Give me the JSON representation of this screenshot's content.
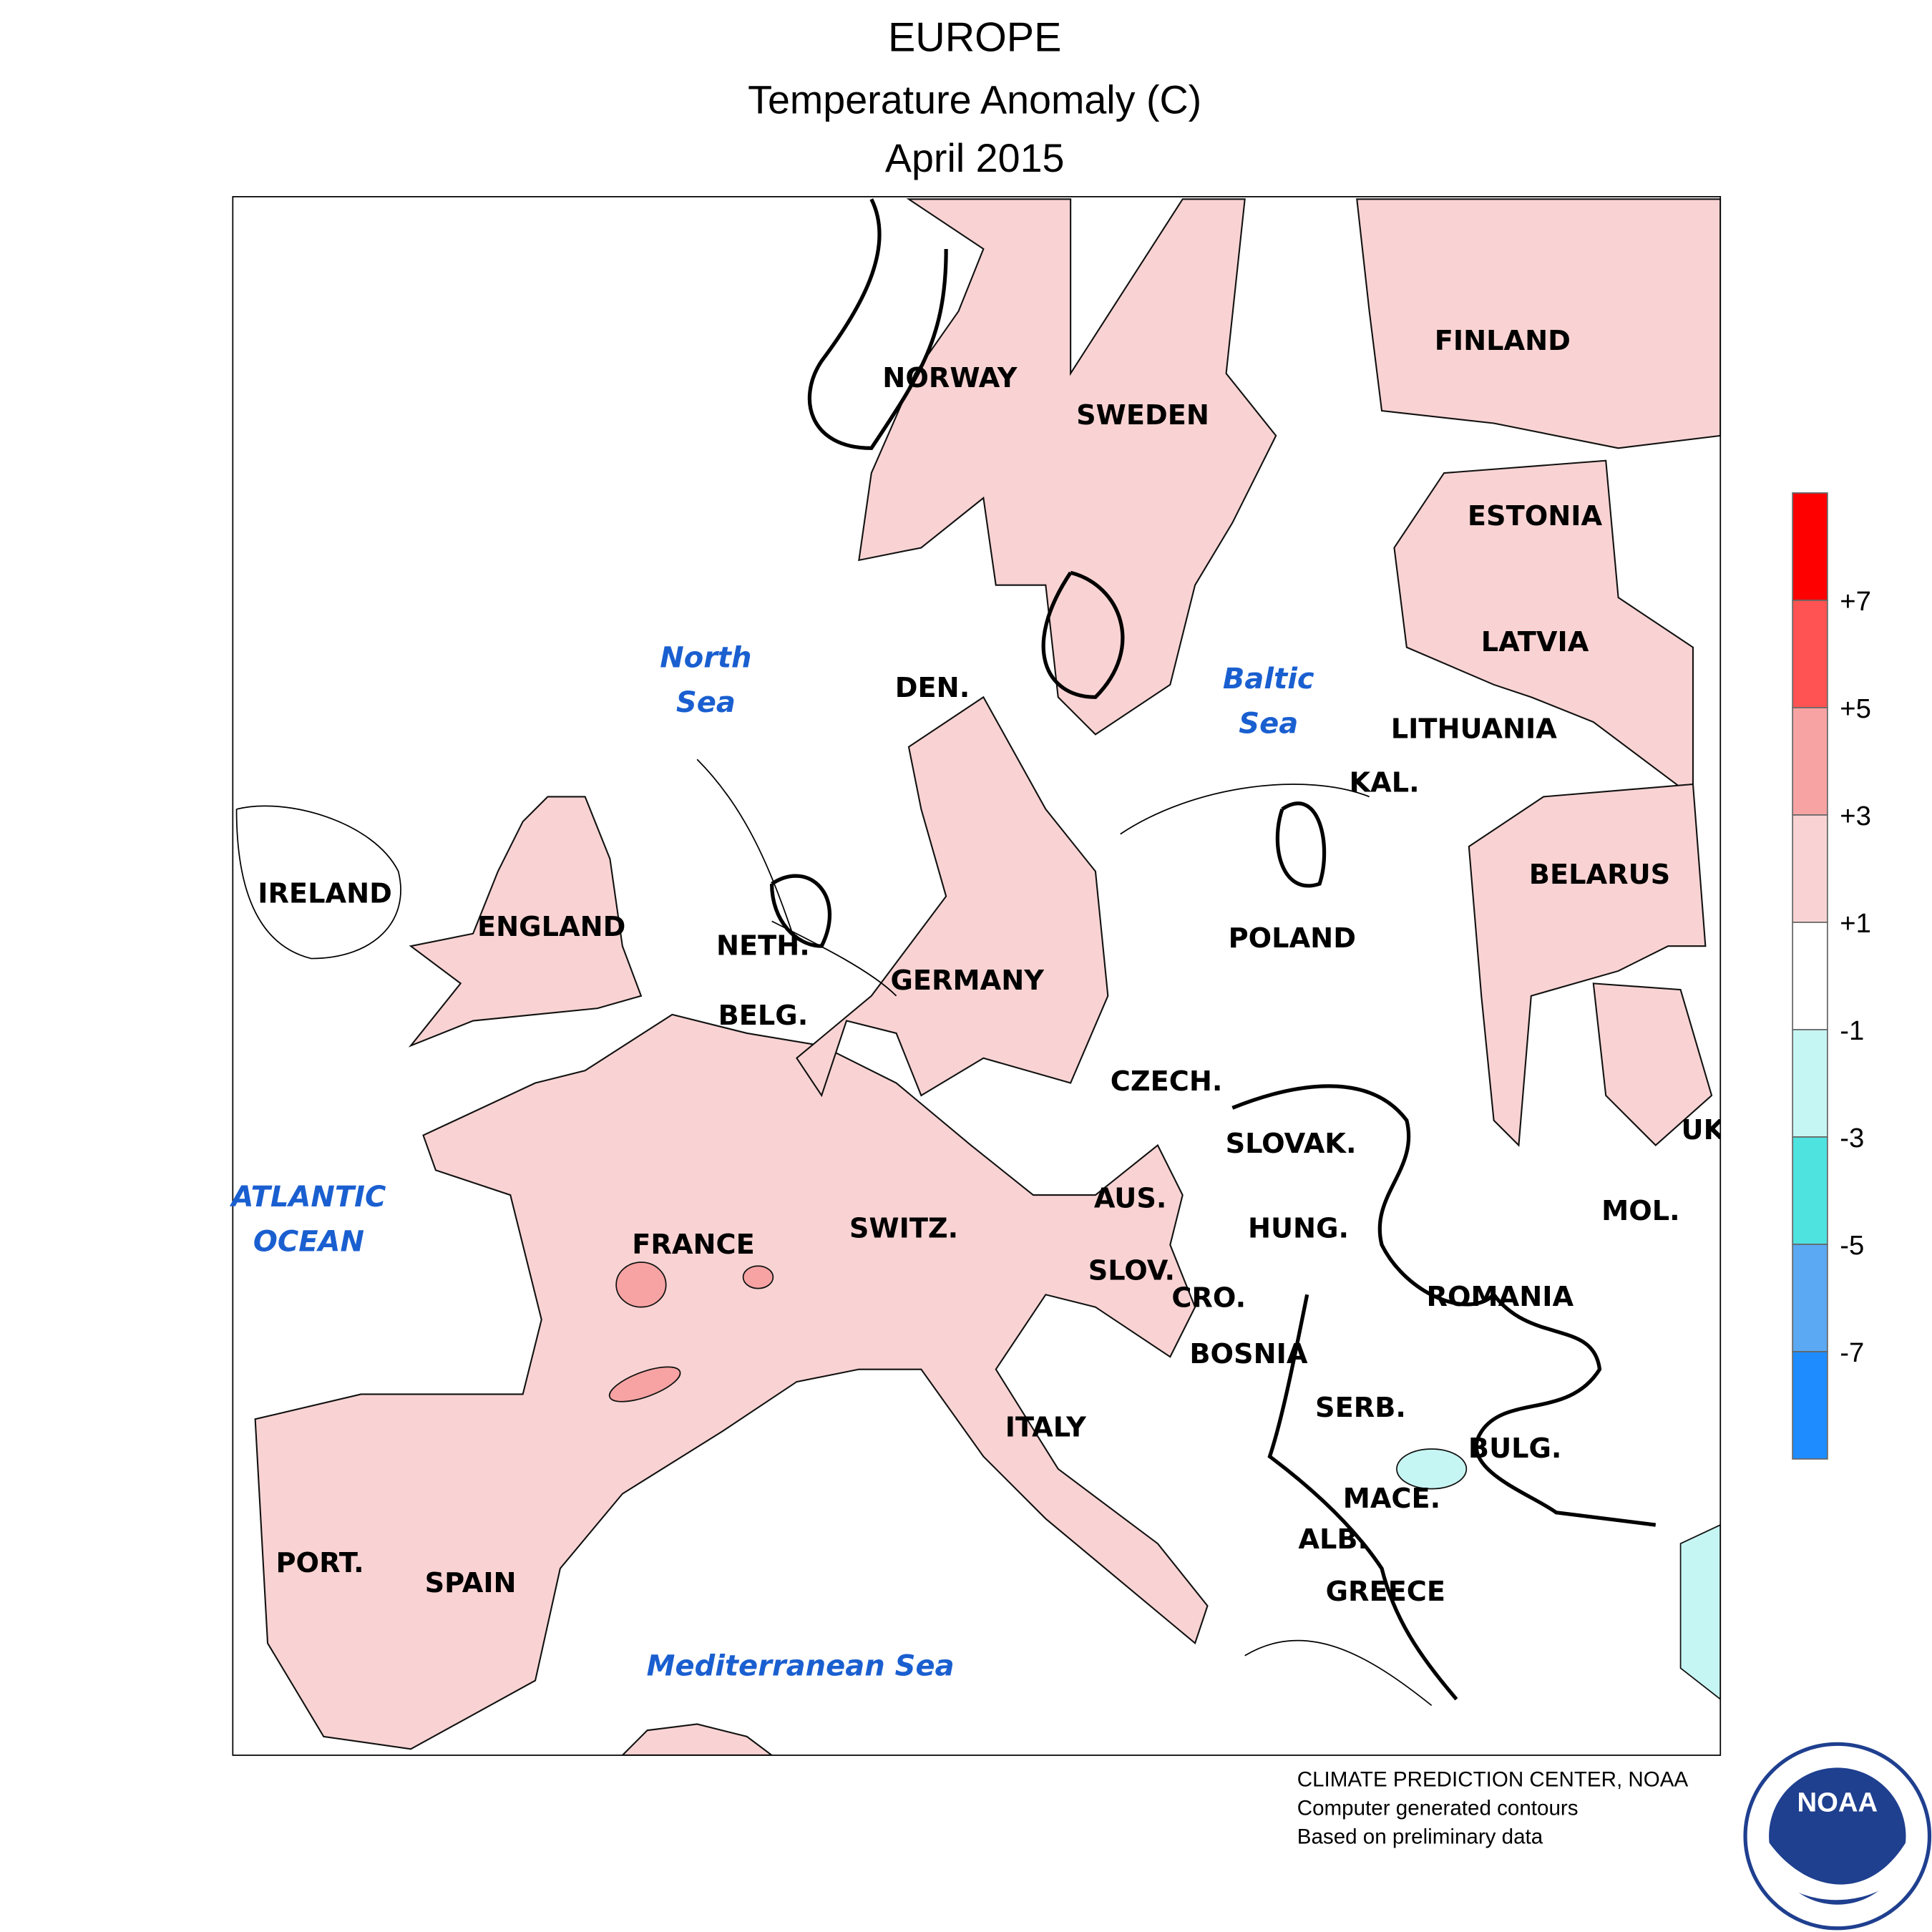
{
  "header": {
    "title": "EUROPE",
    "subtitle": "Temperature Anomaly (C)",
    "period": "April 2015"
  },
  "map": {
    "countries": [
      "NORWAY",
      "SWEDEN",
      "FINLAND",
      "ESTONIA",
      "LATVIA",
      "LITHUANIA",
      "KAL.",
      "BELARUS",
      "POLAND",
      "IRELAND",
      "ENGLAND",
      "NETH.",
      "GERMANY",
      "BELG.",
      "DEN.",
      "CZECH.",
      "SLOVAK.",
      "UK",
      "AUS.",
      "HUNG.",
      "MOL.",
      "SWITZ.",
      "FRANCE",
      "SLOV.",
      "CRO.",
      "ROMANIA",
      "BOSNIA",
      "SERB.",
      "ITALY",
      "BULG.",
      "MACE.",
      "ALB.",
      "GREECE",
      "PORT.",
      "SPAIN"
    ],
    "seas": [
      {
        "lines": [
          "North",
          "Sea"
        ]
      },
      {
        "lines": [
          "Baltic",
          "Sea"
        ]
      },
      {
        "lines": [
          "ATLANTIC",
          "OCEAN"
        ]
      },
      {
        "lines": [
          "Mediterranean Sea"
        ]
      }
    ]
  },
  "legend": {
    "colors": [
      "#ff0000",
      "#ff5252",
      "#f7a3a3",
      "#f9d3d3",
      "#ffffff",
      "#c6f6f4",
      "#4fe3e0",
      "#5aa9f2",
      "#1e8cff"
    ],
    "labels": [
      "+7",
      "+5",
      "+3",
      "+1",
      "-1",
      "-3",
      "-5",
      "-7"
    ]
  },
  "footer": {
    "lines": [
      "CLIMATE PREDICTION CENTER, NOAA",
      "Computer generated contours",
      "Based on preliminary data"
    ]
  },
  "logo": {
    "text": "NOAA"
  }
}
